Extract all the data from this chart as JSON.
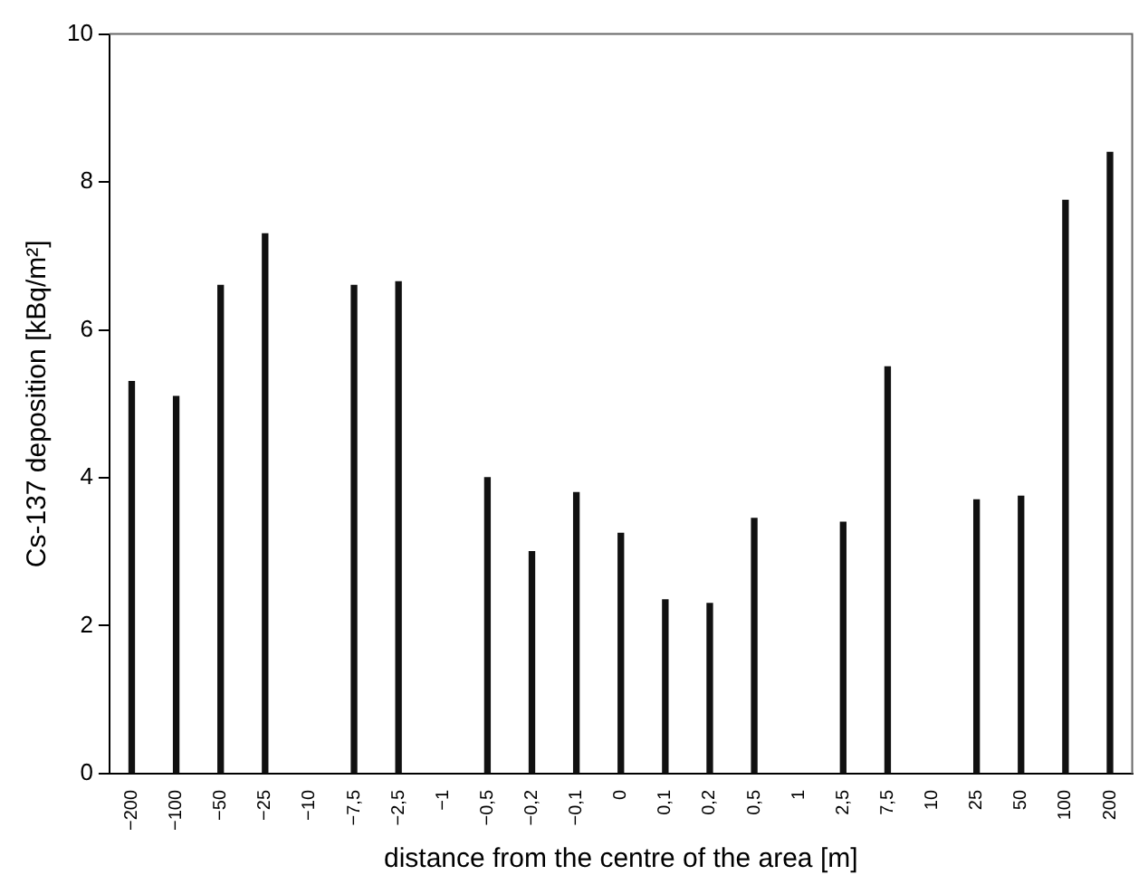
{
  "chart_data": {
    "type": "bar",
    "xlabel": "distance from the centre of the area [m]",
    "ylabel": "Cs-137 deposition [kBq/m²]",
    "categories": [
      "−200",
      "−100",
      "−50",
      "−25",
      "−10",
      "−7,5",
      "−2,5",
      "−1",
      "−0,5",
      "−0,2",
      "−0,1",
      "0",
      "0,1",
      "0,2",
      "0,5",
      "1",
      "2,5",
      "7,5",
      "10",
      "25",
      "50",
      "100",
      "200"
    ],
    "values": [
      5.3,
      5.1,
      6.6,
      7.3,
      null,
      6.6,
      6.65,
      null,
      4.0,
      3.0,
      3.8,
      3.25,
      2.35,
      2.3,
      3.45,
      null,
      3.4,
      5.5,
      null,
      3.7,
      3.75,
      7.75,
      8.4
    ],
    "color": "#111111",
    "ylim": [
      0,
      10
    ],
    "yticks": [
      0,
      2,
      4,
      6,
      8,
      10
    ],
    "grid": false,
    "legend": false
  }
}
